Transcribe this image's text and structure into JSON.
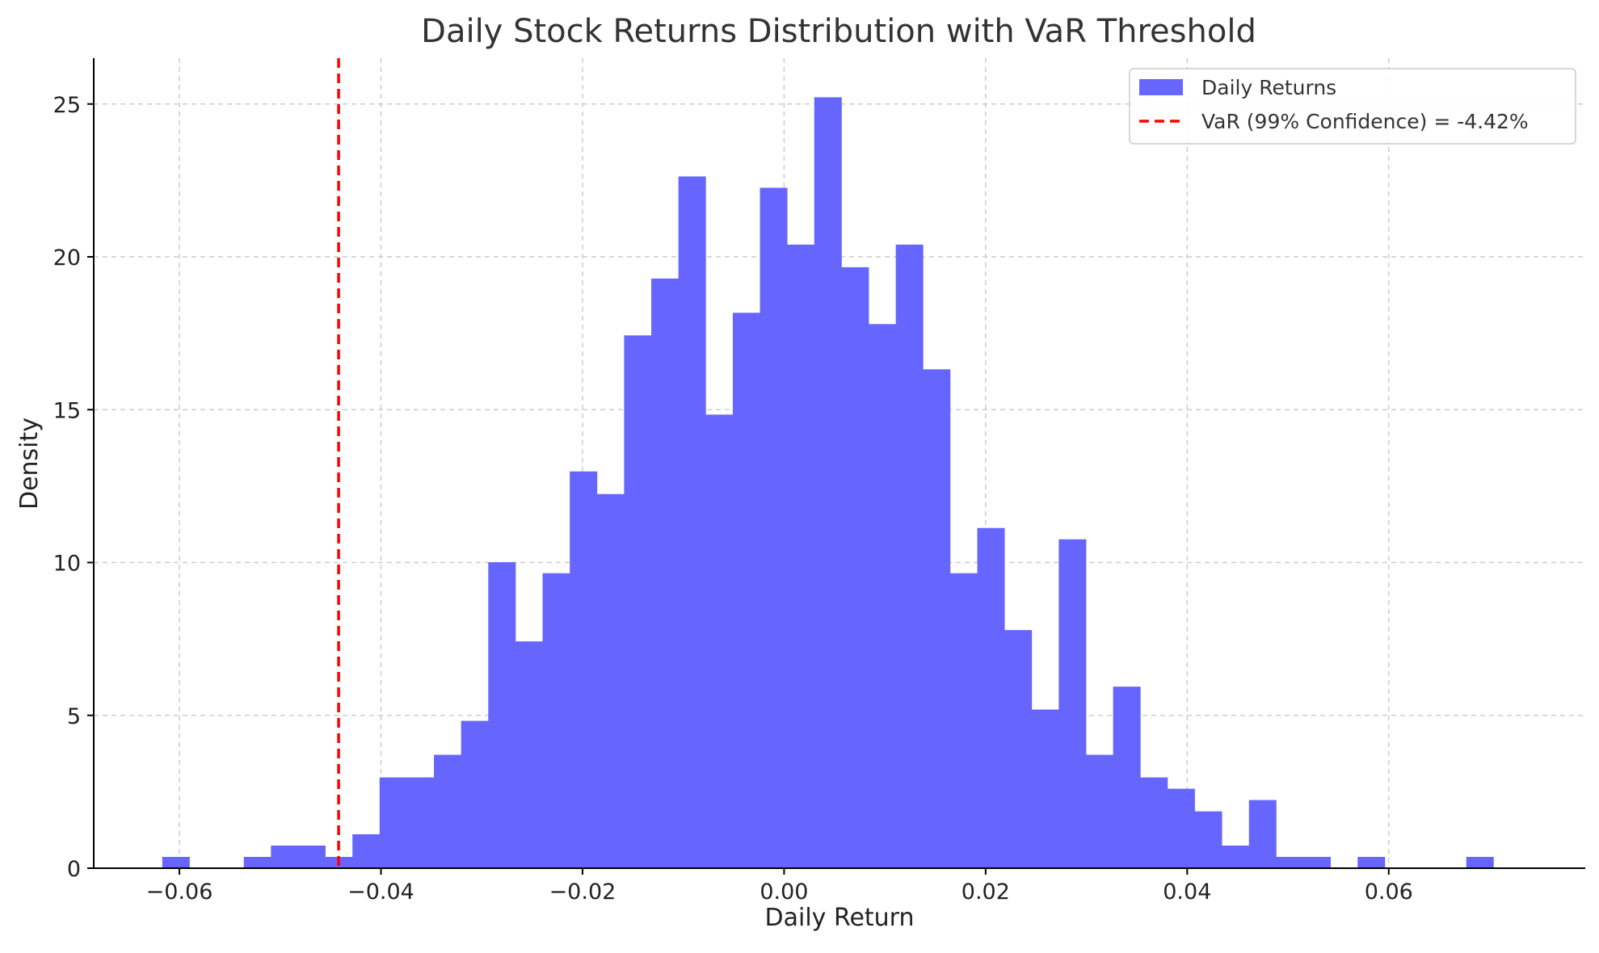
{
  "chart_data": {
    "type": "bar",
    "title": "Daily Stock Returns Distribution with VaR Threshold",
    "xlabel": "Daily Return",
    "ylabel": "Density",
    "xlim": [
      -0.0685,
      0.0795
    ],
    "ylim": [
      0,
      26.5
    ],
    "x_ticks": [
      -0.06,
      -0.04,
      -0.02,
      0.0,
      0.02,
      0.04,
      0.06
    ],
    "x_tick_labels": [
      "−0.06",
      "−0.04",
      "−0.02",
      "0.00",
      "0.02",
      "0.04",
      "0.06"
    ],
    "y_ticks": [
      0,
      5,
      10,
      15,
      20,
      25
    ],
    "y_tick_labels": [
      "0",
      "5",
      "10",
      "15",
      "20",
      "25"
    ],
    "grid": true,
    "legend_position": "top-right",
    "series": [
      {
        "name": "Daily Returns",
        "kind": "histogram",
        "color": "#6666ff",
        "bin_start": -0.0617,
        "bin_width": 0.0026957,
        "densities": [
          0.37,
          0,
          0,
          0.37,
          0.74,
          0.74,
          0.37,
          1.11,
          2.97,
          2.97,
          3.71,
          4.82,
          10.01,
          7.42,
          9.65,
          12.98,
          12.24,
          17.43,
          19.29,
          22.63,
          14.84,
          18.17,
          22.26,
          20.4,
          25.22,
          19.66,
          17.8,
          20.4,
          16.32,
          9.65,
          11.13,
          7.79,
          5.19,
          10.76,
          3.71,
          5.94,
          2.97,
          2.6,
          1.86,
          0.74,
          2.23,
          0.37,
          0.37,
          0,
          0.37,
          0,
          0,
          0,
          0.37
        ]
      },
      {
        "name": "VaR (99% Confidence) = -4.42%",
        "kind": "vline",
        "color": "#ff0000",
        "x": -0.0442
      }
    ]
  }
}
